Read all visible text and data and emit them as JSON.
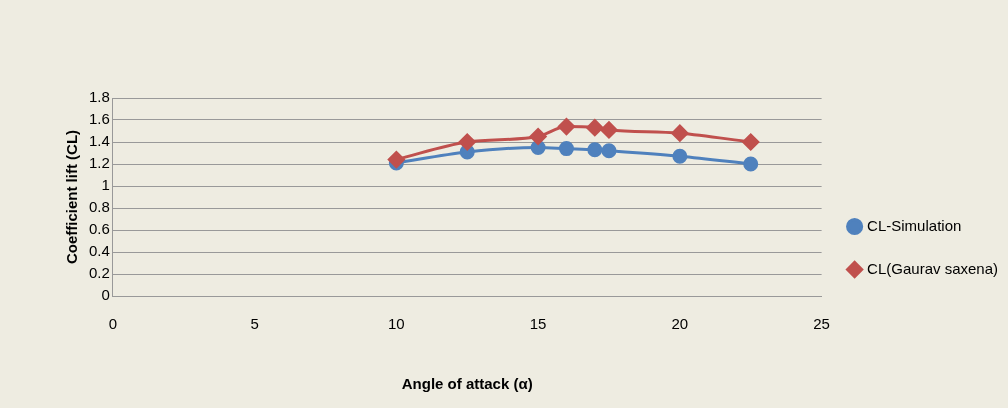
{
  "chart_data": {
    "type": "line",
    "xlabel": "Angle of attack (α)",
    "ylabel": "Coefficient lift (CL)",
    "xlim": [
      0,
      25
    ],
    "xticks": [
      0,
      5,
      10,
      15,
      20,
      25
    ],
    "ylim": [
      0,
      1.8
    ],
    "yticks": [
      0,
      0.2,
      0.4,
      0.6,
      0.8,
      1,
      1.2,
      1.4,
      1.6,
      1.8
    ],
    "grid": "y",
    "legend": "right",
    "series": [
      {
        "name": "CL-Simulation",
        "color": "#4f81bd",
        "marker": "circle",
        "x": [
          10,
          12.5,
          15,
          16,
          17,
          17.5,
          20,
          22.5
        ],
        "values": [
          1.21,
          1.31,
          1.35,
          1.34,
          1.33,
          1.32,
          1.27,
          1.2
        ]
      },
      {
        "name": "CL(Gaurav saxena)",
        "color": "#c0504d",
        "marker": "diamond",
        "x": [
          10,
          12.5,
          15,
          16,
          17,
          17.5,
          20,
          22.5
        ],
        "values": [
          1.24,
          1.4,
          1.45,
          1.54,
          1.53,
          1.51,
          1.48,
          1.4
        ]
      }
    ]
  }
}
